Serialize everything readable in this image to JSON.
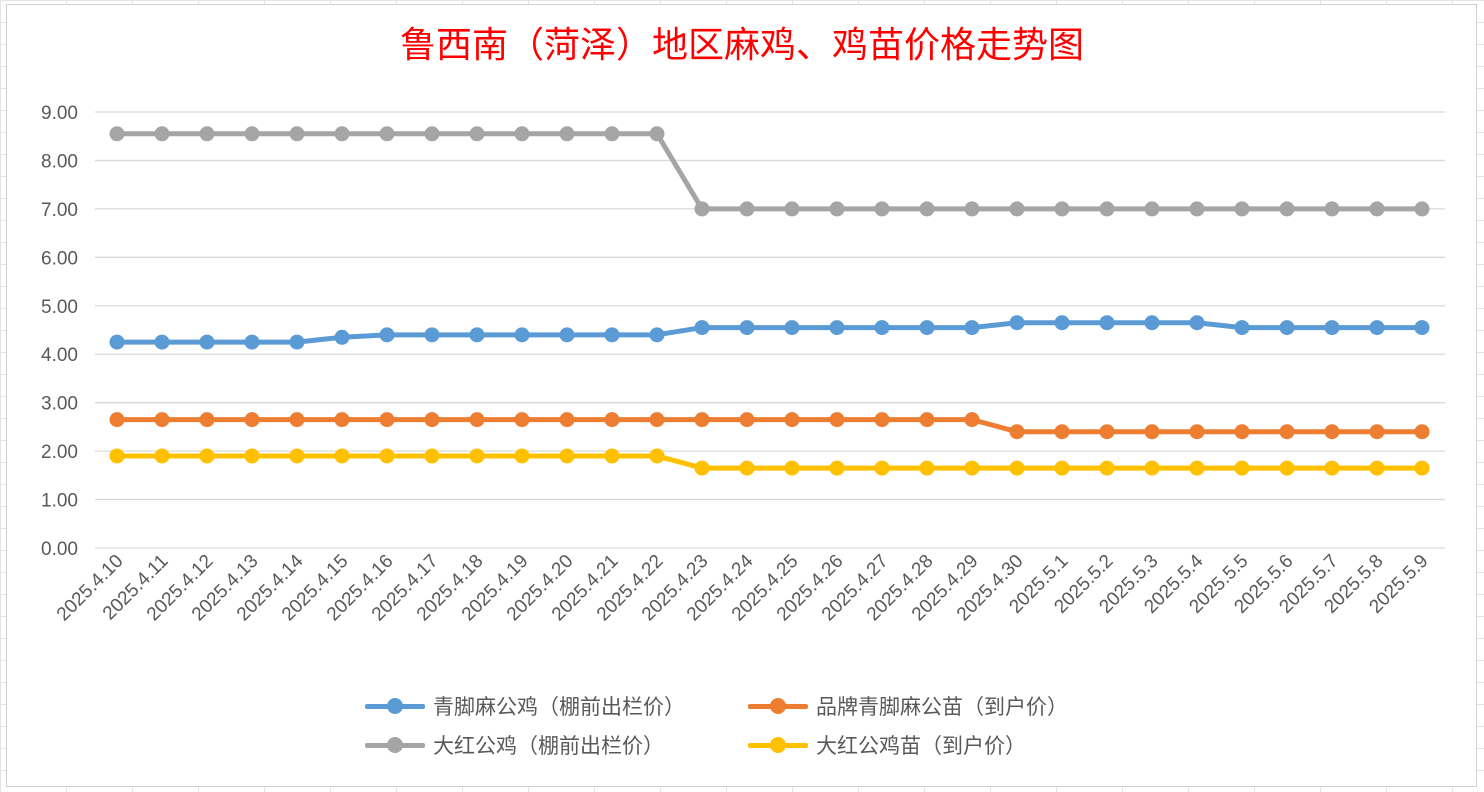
{
  "chart_data": {
    "type": "line",
    "title": "鲁西南（菏泽）地区麻鸡、鸡苗价格走势图",
    "xlabel": "",
    "ylabel": "",
    "ylim": [
      0,
      9
    ],
    "yticks": [
      "0.00",
      "1.00",
      "2.00",
      "3.00",
      "4.00",
      "5.00",
      "6.00",
      "7.00",
      "8.00",
      "9.00"
    ],
    "grid": true,
    "legend_position": "bottom",
    "categories": [
      "2025.4.10",
      "2025.4.11",
      "2025.4.12",
      "2025.4.13",
      "2025.4.14",
      "2025.4.15",
      "2025.4.16",
      "2025.4.17",
      "2025.4.18",
      "2025.4.19",
      "2025.4.20",
      "2025.4.21",
      "2025.4.22",
      "2025.4.23",
      "2025.4.24",
      "2025.4.25",
      "2025.4.26",
      "2025.4.27",
      "2025.4.28",
      "2025.4.29",
      "2025.4.30",
      "2025.5.1",
      "2025.5.2",
      "2025.5.3",
      "2025.5.4",
      "2025.5.5",
      "2025.5.6",
      "2025.5.7",
      "2025.5.8",
      "2025.5.9"
    ],
    "series": [
      {
        "name": "青脚麻公鸡（棚前出栏价）",
        "color": "#5b9bd5",
        "values": [
          4.25,
          4.25,
          4.25,
          4.25,
          4.25,
          4.35,
          4.4,
          4.4,
          4.4,
          4.4,
          4.4,
          4.4,
          4.4,
          4.55,
          4.55,
          4.55,
          4.55,
          4.55,
          4.55,
          4.55,
          4.65,
          4.65,
          4.65,
          4.65,
          4.65,
          4.55,
          4.55,
          4.55,
          4.55,
          4.55
        ]
      },
      {
        "name": "品牌青脚麻公苗（到户价）",
        "color": "#ed7d31",
        "values": [
          2.65,
          2.65,
          2.65,
          2.65,
          2.65,
          2.65,
          2.65,
          2.65,
          2.65,
          2.65,
          2.65,
          2.65,
          2.65,
          2.65,
          2.65,
          2.65,
          2.65,
          2.65,
          2.65,
          2.65,
          2.4,
          2.4,
          2.4,
          2.4,
          2.4,
          2.4,
          2.4,
          2.4,
          2.4,
          2.4
        ]
      },
      {
        "name": "大红公鸡（棚前出栏价）",
        "color": "#a5a5a5",
        "values": [
          8.55,
          8.55,
          8.55,
          8.55,
          8.55,
          8.55,
          8.55,
          8.55,
          8.55,
          8.55,
          8.55,
          8.55,
          8.55,
          7.0,
          7.0,
          7.0,
          7.0,
          7.0,
          7.0,
          7.0,
          7.0,
          7.0,
          7.0,
          7.0,
          7.0,
          7.0,
          7.0,
          7.0,
          7.0,
          7.0
        ]
      },
      {
        "name": "大红公鸡苗（到户价）",
        "color": "#ffc000",
        "values": [
          1.9,
          1.9,
          1.9,
          1.9,
          1.9,
          1.9,
          1.9,
          1.9,
          1.9,
          1.9,
          1.9,
          1.9,
          1.9,
          1.65,
          1.65,
          1.65,
          1.65,
          1.65,
          1.65,
          1.65,
          1.65,
          1.65,
          1.65,
          1.65,
          1.65,
          1.65,
          1.65,
          1.65,
          1.65,
          1.65
        ]
      }
    ]
  }
}
